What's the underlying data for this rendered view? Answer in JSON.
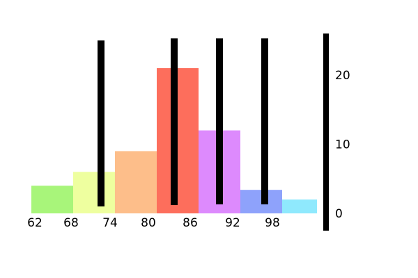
{
  "chart_data": {
    "type": "bar",
    "title": "",
    "xlabel": "",
    "ylabel": "",
    "x_tick_labels": [
      "62",
      "68",
      "74",
      "80",
      "86",
      "92",
      "98"
    ],
    "y_tick_labels": [
      "0",
      "10",
      "20"
    ],
    "bins": [
      {
        "start": 62,
        "end": 68,
        "value": 4,
        "color": "#a8f57a"
      },
      {
        "start": 68,
        "end": 74,
        "value": 6,
        "color": "#eeff9f"
      },
      {
        "start": 74,
        "end": 80,
        "value": 9,
        "color": "#fdbe8a"
      },
      {
        "start": 80,
        "end": 86,
        "value": 21,
        "color": "#fd6e5c"
      },
      {
        "start": 86,
        "end": 92,
        "value": 12,
        "color": "#dd8afd"
      },
      {
        "start": 92,
        "end": 98,
        "value": 3.4,
        "color": "#8ea2fb"
      },
      {
        "start": 98,
        "end": 103,
        "value": 2,
        "color": "#8fe9fd"
      }
    ],
    "error_bars": [
      {
        "x": 72,
        "low": 1,
        "high": 25
      },
      {
        "x": 82.5,
        "low": 1.2,
        "high": 25.3
      },
      {
        "x": 89,
        "low": 1.3,
        "high": 25.3
      },
      {
        "x": 95.5,
        "low": 1.3,
        "high": 25.3
      }
    ],
    "axis_line": {
      "low": -2.5,
      "high": 26
    },
    "xlim": [
      62,
      103
    ],
    "ylim": [
      0,
      26
    ],
    "grid": false,
    "legend": "none"
  }
}
